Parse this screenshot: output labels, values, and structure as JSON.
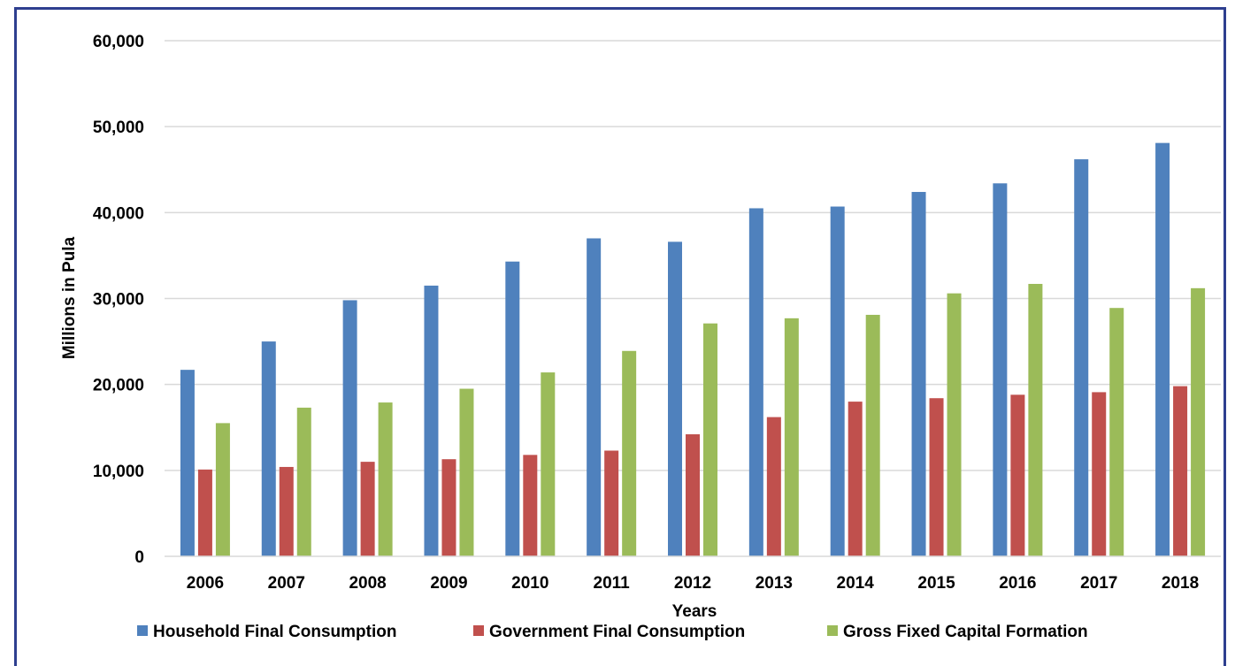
{
  "chart_data": {
    "type": "bar",
    "title": "",
    "xlabel": "Years",
    "ylabel": "Millions in Pula",
    "ylim": [
      0,
      60000
    ],
    "yticks": [
      "0",
      "10,000",
      "20,000",
      "30,000",
      "40,000",
      "50,000",
      "60,000"
    ],
    "grid": true,
    "legend_position": "bottom",
    "categories": [
      "2006",
      "2007",
      "2008",
      "2009",
      "2010",
      "2011",
      "2012",
      "2013",
      "2014",
      "2015",
      "2016",
      "2017",
      "2018"
    ],
    "series": [
      {
        "name": "Household Final Consumption",
        "color": "#4f81bd",
        "values": [
          21700,
          25000,
          29800,
          31500,
          34300,
          37000,
          36600,
          40500,
          40700,
          42400,
          43400,
          46200,
          48100
        ]
      },
      {
        "name": "Government Final Consumption",
        "color": "#c0504d",
        "values": [
          10100,
          10400,
          11000,
          11300,
          11800,
          12300,
          14200,
          16200,
          18000,
          18400,
          18800,
          19100,
          19800
        ]
      },
      {
        "name": "Gross Fixed Capital Formation",
        "color": "#9bbb59",
        "values": [
          15500,
          17300,
          17900,
          19500,
          21400,
          23900,
          27100,
          27700,
          28100,
          30600,
          31700,
          28900,
          31200
        ]
      }
    ]
  }
}
